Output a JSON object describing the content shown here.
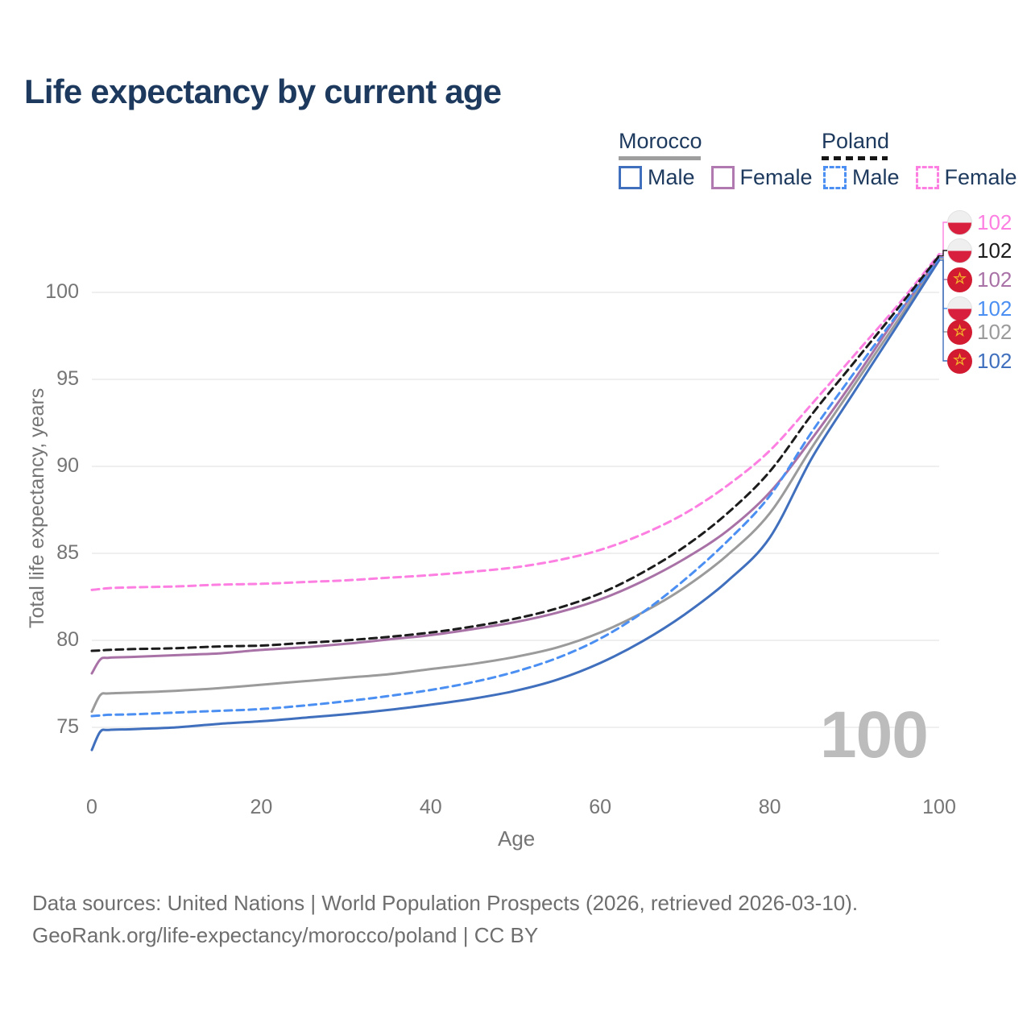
{
  "page": {
    "title": "Life expectancy by current age"
  },
  "legend": {
    "groups": [
      {
        "country": "Morocco",
        "line_style": "solid",
        "underline_color": "#9e9e9e",
        "items": [
          {
            "label": "Male",
            "color": "#3f6fbd",
            "dashed": false
          },
          {
            "label": "Female",
            "color": "#b07ab0",
            "dashed": false
          }
        ]
      },
      {
        "country": "Poland",
        "line_style": "dashed",
        "underline_color": "#161616",
        "items": [
          {
            "label": "Male",
            "color": "#4b8ff2",
            "dashed": true
          },
          {
            "label": "Female",
            "color": "#fc7fe1",
            "dashed": true
          }
        ]
      }
    ]
  },
  "axes": {
    "x_label": "Age",
    "y_label": "Total life expectancy, years",
    "x_ticks": [
      "0",
      "20",
      "40",
      "60",
      "80",
      "100"
    ],
    "y_ticks": [
      "75",
      "80",
      "85",
      "90",
      "95",
      "100"
    ]
  },
  "watermark_age": "100",
  "endpoints": [
    {
      "value": "102",
      "flag": "poland",
      "series": "Poland Female",
      "color": "#fc7fe1"
    },
    {
      "value": "102",
      "flag": "poland",
      "series": "Poland",
      "color": "#1c1c1c"
    },
    {
      "value": "102",
      "flag": "morocco",
      "series": "Morocco Female",
      "color": "#a972a7"
    },
    {
      "value": "102",
      "flag": "poland",
      "series": "Poland Male",
      "color": "#4b8ff2"
    },
    {
      "value": "102",
      "flag": "morocco",
      "series": "Morocco",
      "color": "#9b9b9b"
    },
    {
      "value": "102",
      "flag": "morocco",
      "series": "Morocco Male",
      "color": "#3f6fbd"
    }
  ],
  "source": {
    "line1": "Data sources: United Nations | World Population Prospects (2026, retrieved 2026-03-10).",
    "line2": "GeoRank.org/life-expectancy/morocco/poland | CC BY"
  },
  "chart_data": {
    "type": "line",
    "title": "Life expectancy by current age",
    "xlabel": "Age",
    "ylabel": "Total life expectancy, years",
    "xlim": [
      0,
      100
    ],
    "ylim": [
      73,
      103
    ],
    "grid": "horizontal",
    "legend_position": "top-right",
    "x": [
      0,
      1,
      2,
      5,
      10,
      15,
      20,
      25,
      30,
      35,
      40,
      45,
      50,
      55,
      60,
      65,
      70,
      75,
      80,
      85,
      90,
      95,
      100
    ],
    "series": [
      {
        "name": "Morocco",
        "country": "Morocco",
        "sex": "total",
        "style": "solid",
        "color": "#9b9b9b",
        "values": [
          75.9,
          76.85,
          76.95,
          77.0,
          77.1,
          77.25,
          77.45,
          77.65,
          77.85,
          78.05,
          78.35,
          78.65,
          79.05,
          79.6,
          80.45,
          81.6,
          83.05,
          84.9,
          87.3,
          91.1,
          94.7,
          98.3,
          101.95
        ]
      },
      {
        "name": "Morocco Male",
        "country": "Morocco",
        "sex": "male",
        "style": "solid",
        "color": "#3f6fbd",
        "values": [
          73.7,
          74.75,
          74.85,
          74.9,
          75.0,
          75.2,
          75.35,
          75.55,
          75.75,
          76.0,
          76.3,
          76.65,
          77.1,
          77.75,
          78.7,
          79.95,
          81.5,
          83.4,
          85.9,
          90.5,
          94.3,
          98.05,
          101.85
        ]
      },
      {
        "name": "Morocco Female",
        "country": "Morocco",
        "sex": "female",
        "style": "solid",
        "color": "#a972a7",
        "values": [
          78.1,
          78.9,
          79.0,
          79.05,
          79.15,
          79.25,
          79.45,
          79.6,
          79.8,
          80.05,
          80.3,
          80.65,
          81.05,
          81.6,
          82.35,
          83.4,
          84.7,
          86.3,
          88.5,
          91.6,
          95.0,
          98.6,
          102.05
        ]
      },
      {
        "name": "Poland Male",
        "country": "Poland",
        "sex": "male",
        "style": "dashed",
        "color": "#4b8ff2",
        "values": [
          75.65,
          75.68,
          75.72,
          75.75,
          75.85,
          75.95,
          76.05,
          76.25,
          76.5,
          76.8,
          77.15,
          77.6,
          78.2,
          79.0,
          80.1,
          81.6,
          83.5,
          85.7,
          88.3,
          92.0,
          95.4,
          98.7,
          102.0
        ]
      },
      {
        "name": "Poland Female",
        "country": "Poland",
        "sex": "female",
        "style": "dashed",
        "color": "#fc7fe1",
        "values": [
          82.9,
          82.95,
          83.0,
          83.05,
          83.1,
          83.2,
          83.25,
          83.35,
          83.45,
          83.6,
          83.75,
          83.95,
          84.2,
          84.6,
          85.2,
          86.1,
          87.3,
          88.9,
          90.9,
          93.6,
          96.4,
          99.2,
          102.2
        ]
      },
      {
        "name": "Poland",
        "country": "Poland",
        "sex": "total",
        "style": "dashed",
        "color": "#1c1c1c",
        "values": [
          79.4,
          79.42,
          79.45,
          79.5,
          79.55,
          79.65,
          79.7,
          79.85,
          80.0,
          80.2,
          80.45,
          80.8,
          81.25,
          81.85,
          82.7,
          83.9,
          85.4,
          87.3,
          89.7,
          93.0,
          96.0,
          99.0,
          102.1
        ]
      }
    ]
  }
}
